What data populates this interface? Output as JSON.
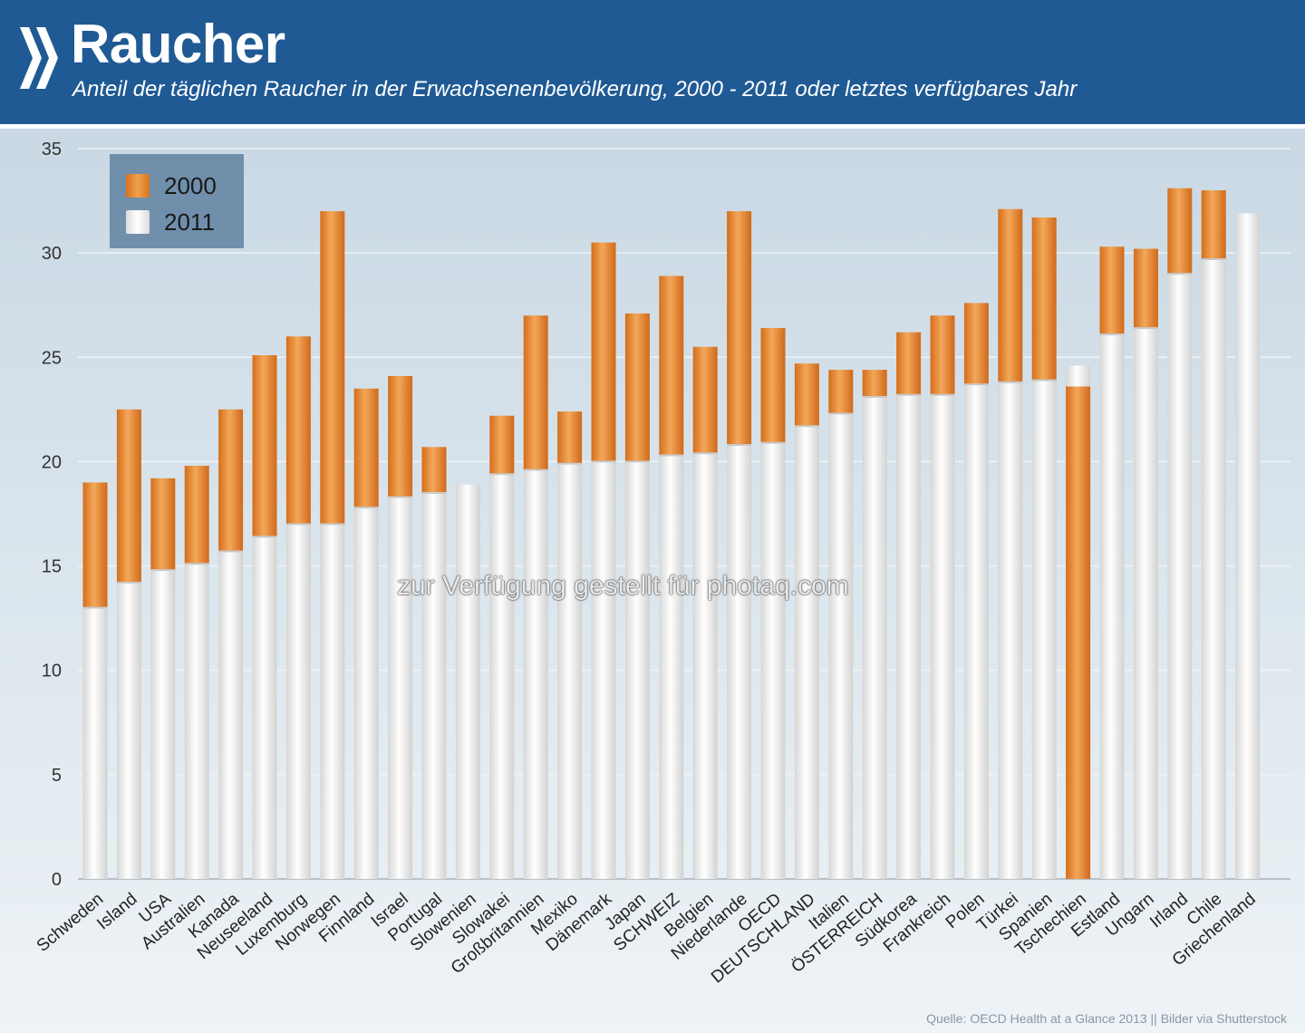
{
  "header": {
    "title": "Raucher",
    "subtitle": "Anteil der täglichen Raucher in der Erwachsenenbevölkerung, 2000 - 2011 oder letztes verfügbares Jahr",
    "background_color": "#1f5a94",
    "logo_icon": "oecd-chevrons-logo"
  },
  "source": "Quelle: OECD Health at a Glance 2013 || Bilder via Shutterstock",
  "watermark": "zur Verfügung gestellt für photaq.com",
  "legend": [
    {
      "label": "2000",
      "color": "#e98a2c"
    },
    {
      "label": "2011",
      "color": "#f4f4f4"
    }
  ],
  "chart_data": {
    "type": "bar",
    "title": "Raucher",
    "subtitle": "Anteil der täglichen Raucher in der Erwachsenenbevölkerung, 2000 - 2011 oder letztes verfügbares Jahr",
    "xlabel": "",
    "ylabel": "",
    "ylim": [
      0,
      35
    ],
    "yticks": [
      0,
      5,
      10,
      15,
      20,
      25,
      30,
      35
    ],
    "grid": true,
    "legend_position": "top-left",
    "categories": [
      "Schweden",
      "Island",
      "USA",
      "Australien",
      "Kanada",
      "Neuseeland",
      "Luxemburg",
      "Norwegen",
      "Finnland",
      "Israel",
      "Portugal",
      "Slowenien",
      "Slowakei",
      "Großbritannien",
      "Mexiko",
      "Dänemark",
      "Japan",
      "SCHWEIZ",
      "Belgien",
      "Niederlande",
      "OECD",
      "DEUTSCHLAND",
      "Italien",
      "ÖSTERREICH",
      "Südkorea",
      "Frankreich",
      "Polen",
      "Türkei",
      "Spanien",
      "Tschechien",
      "Estland",
      "Ungarn",
      "Irland",
      "Chile",
      "Griechenland"
    ],
    "series": [
      {
        "name": "2000",
        "color": "#e98a2c",
        "values": [
          19.0,
          22.5,
          19.2,
          19.8,
          22.5,
          25.1,
          26.0,
          32.0,
          23.5,
          24.1,
          20.7,
          null,
          22.2,
          27.0,
          22.4,
          30.5,
          27.1,
          28.9,
          25.5,
          32.0,
          26.4,
          24.7,
          24.4,
          24.4,
          26.2,
          27.0,
          27.6,
          32.1,
          31.7,
          23.6,
          30.3,
          30.2,
          33.1,
          33.0,
          null
        ]
      },
      {
        "name": "2011",
        "color": "#f4f4f4",
        "values": [
          13.0,
          14.2,
          14.8,
          15.1,
          15.7,
          16.4,
          17.0,
          17.0,
          17.8,
          18.3,
          18.5,
          18.9,
          19.4,
          19.6,
          19.9,
          20.0,
          20.0,
          20.3,
          20.4,
          20.8,
          20.9,
          21.7,
          22.3,
          23.1,
          23.2,
          23.2,
          23.7,
          23.8,
          23.9,
          24.6,
          26.1,
          26.4,
          29.0,
          29.7,
          31.9
        ]
      }
    ]
  }
}
